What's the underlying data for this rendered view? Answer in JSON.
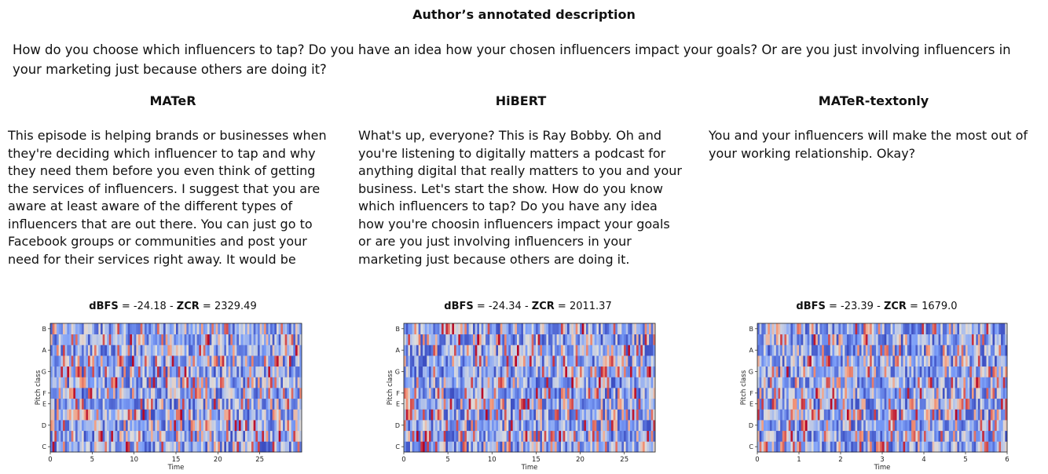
{
  "page_title": "Author’s annotated description",
  "description": "How do you choose which influencers to tap? Do you have an idea how your chosen influencers impact your goals? Or are you just involving influencers in your marketing just because others are doing it?",
  "columns": [
    {
      "title": "MATeR",
      "text": "This episode is helping brands or businesses when they're deciding which influencer to tap and why they need them before you even think of getting the services of influencers. I suggest that you are aware at least aware of the different types of influencers that are out there. You can just go to Facebook groups or communities and post your need for their services right away. It would be",
      "dbfs_label": "dBFS",
      "dbfs": "-24.18",
      "zcr_label": "ZCR",
      "zcr": "2329.49"
    },
    {
      "title": "HiBERT",
      "text": "What's up, everyone? This is Ray Bobby. Oh and you're listening to digitally matters a podcast for anything digital that really matters to you and your business. Let's start the show. How do you know which influencers to tap? Do you have any idea how you're choosin influencers impact your goals or are you just involving influencers in your marketing just because others are doing it.",
      "dbfs_label": "dBFS",
      "dbfs": "-24.34",
      "zcr_label": "ZCR",
      "zcr": "2011.37"
    },
    {
      "title": "MATeR-textonly",
      "text": "You and your influencers will make the most out of your working relationship. Okay?",
      "dbfs_label": "dBFS",
      "dbfs": "-23.39",
      "zcr_label": "ZCR",
      "zcr": "1679.0"
    }
  ],
  "chromagrams": [
    {
      "type": "heatmap",
      "ylabel": "Pitch class",
      "xlabel": "Time",
      "y_ticks": [
        "C",
        "D",
        "E",
        "F",
        "G",
        "A",
        "B"
      ],
      "x_ticks": [
        "0",
        "5",
        "10",
        "15",
        "20",
        "25"
      ],
      "x_tick_values": [
        0,
        5,
        10,
        15,
        20,
        25
      ],
      "xlim": [
        0,
        30
      ],
      "colormap": "coolwarm"
    },
    {
      "type": "heatmap",
      "ylabel": "Pitch class",
      "xlabel": "Time",
      "y_ticks": [
        "C",
        "D",
        "E",
        "F",
        "G",
        "A",
        "B"
      ],
      "x_ticks": [
        "0",
        "5",
        "10",
        "15",
        "20",
        "25"
      ],
      "x_tick_values": [
        0,
        5,
        10,
        15,
        20,
        25
      ],
      "xlim": [
        0,
        28.5
      ],
      "colormap": "coolwarm"
    },
    {
      "type": "heatmap",
      "ylabel": "Pitch class",
      "xlabel": "Time",
      "y_ticks": [
        "C",
        "D",
        "E",
        "F",
        "G",
        "A",
        "B"
      ],
      "x_ticks": [
        "0",
        "1",
        "2",
        "3",
        "4",
        "5",
        "6"
      ],
      "x_tick_values": [
        0,
        1,
        2,
        3,
        4,
        5,
        6
      ],
      "xlim": [
        0,
        6
      ],
      "colormap": "coolwarm"
    }
  ]
}
